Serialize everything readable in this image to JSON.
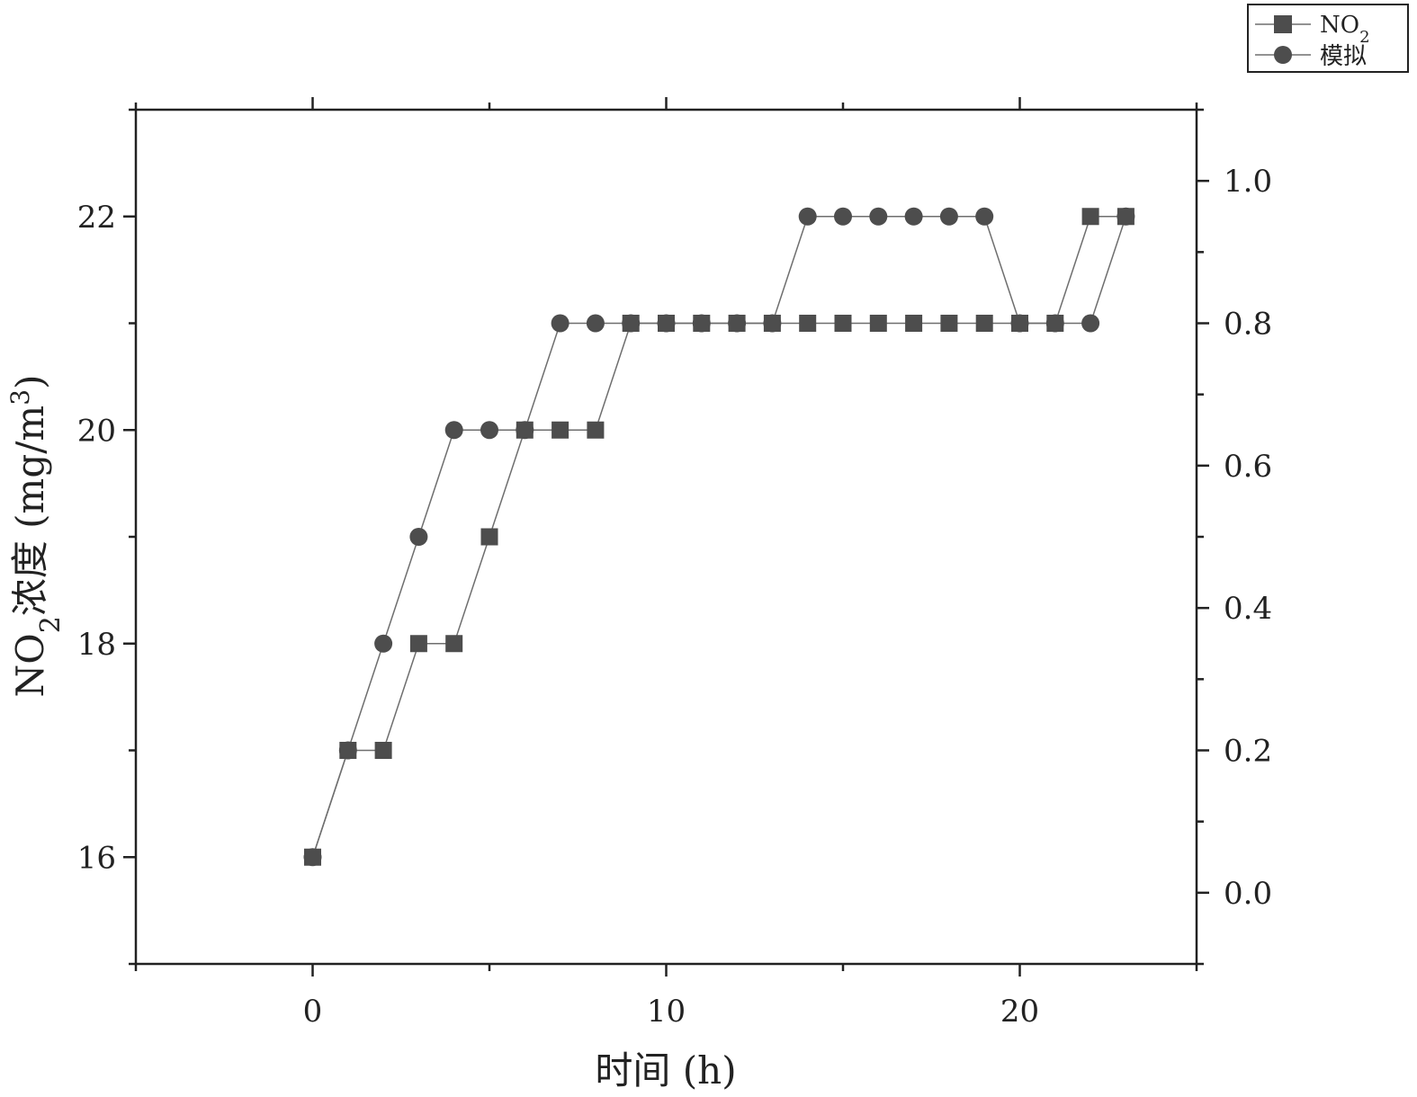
{
  "chart_data": {
    "type": "line",
    "title": "",
    "xlabel": "时间 (h)",
    "ylabel": "NO2浓度 (mg/m3)",
    "ylabel_parts": {
      "pre": "NO",
      "sub": "2",
      "mid": "浓度 (mg/m",
      "sup": "3",
      "post": ")"
    },
    "xlim": [
      -5,
      25
    ],
    "ylim": [
      15,
      23
    ],
    "y2lim": [
      -0.1,
      1.1
    ],
    "x_ticks": [
      0,
      10,
      20
    ],
    "y_ticks": [
      16,
      18,
      20,
      22
    ],
    "y2_ticks": [
      "0.0",
      "0.2",
      "0.4",
      "0.6",
      "0.8",
      "1.0"
    ],
    "grid": false,
    "legend_position": "top-right, outside plot",
    "marker_color": "#4d4d4d",
    "line_color": "#6e6e6e",
    "series": [
      {
        "name": "NO2",
        "name_parts": {
          "base": "NO",
          "sub": "2"
        },
        "marker": "square",
        "x": [
          0,
          1,
          2,
          3,
          4,
          5,
          6,
          7,
          8,
          9,
          10,
          11,
          12,
          13,
          14,
          15,
          16,
          17,
          18,
          19,
          20,
          21,
          22,
          23
        ],
        "y": [
          16,
          17,
          17,
          18,
          18,
          19,
          20,
          20,
          20,
          21,
          21,
          21,
          21,
          21,
          21,
          21,
          21,
          21,
          21,
          21,
          21,
          21,
          22,
          22
        ]
      },
      {
        "name": "模拟",
        "marker": "circle",
        "x": [
          0,
          1,
          2,
          3,
          4,
          5,
          6,
          7,
          8,
          9,
          10,
          11,
          12,
          13,
          14,
          15,
          16,
          17,
          18,
          19,
          20,
          21,
          22,
          23
        ],
        "y": [
          16,
          17,
          18,
          19,
          20,
          20,
          20,
          21,
          21,
          21,
          21,
          21,
          21,
          21,
          22,
          22,
          22,
          22,
          22,
          22,
          21,
          21,
          21,
          22
        ]
      }
    ]
  }
}
